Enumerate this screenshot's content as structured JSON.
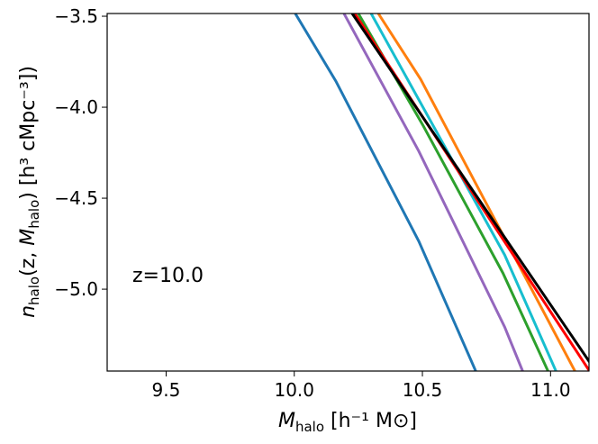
{
  "chart_data": {
    "type": "line",
    "title": "",
    "xlabel": {
      "main": "M",
      "sub": "halo",
      "unit": " [h⁻¹ M⊙]"
    },
    "ylabel": {
      "n": "n",
      "nsub": "halo",
      "args_open": "(z, ",
      "m": "M",
      "msub": "halo",
      "args_close": ") [h³ cMpc⁻³])"
    },
    "xlim": [
      9.27,
      11.15
    ],
    "ylim": [
      -5.45,
      -3.485
    ],
    "xticks": [
      9.5,
      10.0,
      10.5,
      11.0
    ],
    "xtick_labels": [
      "9.5",
      "10.0",
      "10.5",
      "11.0"
    ],
    "yticks": [
      -3.5,
      -4.0,
      -4.5,
      -5.0
    ],
    "ytick_labels": [
      "−3.5",
      "−4.0",
      "−4.5",
      "−5.0"
    ],
    "grid": false,
    "annotation": "z=10.0",
    "series": [
      {
        "name": "blue",
        "color": "#1f77b4",
        "x": [
          10.004,
          10.162,
          10.486,
          10.708
        ],
        "y": [
          -3.485,
          -3.856,
          -4.737,
          -5.45
        ]
      },
      {
        "name": "purple",
        "color": "#9467bd",
        "x": [
          10.194,
          10.486,
          10.821,
          10.891
        ],
        "y": [
          -3.485,
          -4.242,
          -5.208,
          -5.45
        ]
      },
      {
        "name": "green",
        "color": "#2ca02c",
        "x": [
          10.25,
          10.504,
          10.814,
          10.99
        ],
        "y": [
          -3.485,
          -4.104,
          -4.911,
          -5.45
        ]
      },
      {
        "name": "cyan",
        "color": "#17becf",
        "x": [
          10.3,
          10.821,
          11.021
        ],
        "y": [
          -3.485,
          -4.812,
          -5.45
        ]
      },
      {
        "name": "orange",
        "color": "#ff7f0e",
        "x": [
          10.328,
          10.493,
          11.095
        ],
        "y": [
          -3.485,
          -3.846,
          -5.45
        ]
      },
      {
        "name": "red",
        "color": "#ff0000",
        "x": [
          10.236,
          11.152
        ],
        "y": [
          -3.485,
          -5.45
        ]
      },
      {
        "name": "black",
        "color": "#000000",
        "x": [
          10.226,
          11.152
        ],
        "y": [
          -3.485,
          -5.4
        ]
      }
    ]
  }
}
